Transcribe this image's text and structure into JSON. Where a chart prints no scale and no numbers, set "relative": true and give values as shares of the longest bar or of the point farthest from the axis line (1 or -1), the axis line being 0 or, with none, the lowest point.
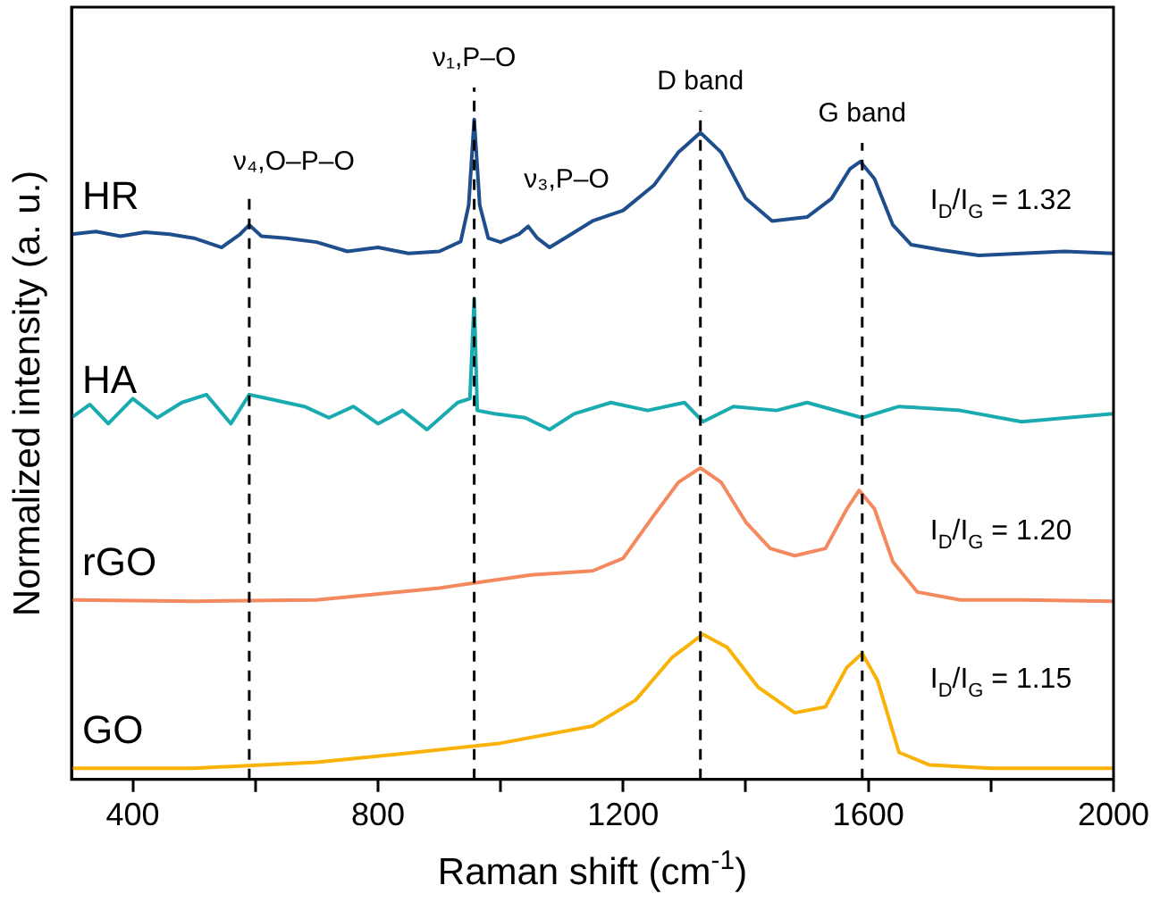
{
  "chart_data": {
    "type": "line",
    "xlabel": "Raman shift (cm$^{-1}$)",
    "ylabel": "Normalized intensity (a. u.)",
    "relative": true,
    "xlim": [
      300,
      2000
    ],
    "xticks": [
      400,
      {
        "value": 600,
        "label": null
      },
      800,
      {
        "value": 1000,
        "label": null
      },
      1200,
      {
        "value": 1400,
        "label": null
      },
      1600,
      {
        "value": 1800,
        "label": null
      },
      2000
    ],
    "grid": false,
    "legend": false,
    "marker": "none",
    "line_style": "solid",
    "series": [
      {
        "name": "HR",
        "color": "#1f4e8c",
        "x": [
          300,
          340,
          380,
          420,
          460,
          500,
          545,
          575,
          590,
          610,
          650,
          700,
          750,
          800,
          850,
          900,
          935,
          948,
          957,
          966,
          980,
          1000,
          1030,
          1045,
          1060,
          1080,
          1110,
          1150,
          1200,
          1250,
          1290,
          1326,
          1360,
          1400,
          1443,
          1500,
          1540,
          1570,
          1587,
          1610,
          1640,
          1670,
          1720,
          1780,
          1850,
          1920,
          2000
        ],
        "values": [
          0.826,
          0.83,
          0.823,
          0.829,
          0.826,
          0.82,
          0.806,
          0.826,
          0.84,
          0.823,
          0.82,
          0.814,
          0.8,
          0.806,
          0.797,
          0.8,
          0.815,
          0.87,
          1.0,
          0.87,
          0.82,
          0.814,
          0.826,
          0.838,
          0.82,
          0.806,
          0.823,
          0.846,
          0.862,
          0.9,
          0.95,
          0.98,
          0.95,
          0.88,
          0.846,
          0.852,
          0.88,
          0.925,
          0.936,
          0.91,
          0.84,
          0.81,
          0.802,
          0.794,
          0.797,
          0.8,
          0.797
        ]
      },
      {
        "name": "HA",
        "color": "#1aabb0",
        "x": [
          300,
          330,
          360,
          400,
          440,
          480,
          520,
          560,
          590,
          620,
          680,
          720,
          760,
          800,
          840,
          880,
          930,
          950,
          957,
          962,
          990,
          1040,
          1080,
          1120,
          1180,
          1240,
          1300,
          1330,
          1380,
          1450,
          1500,
          1590,
          1650,
          1750,
          1850,
          2000
        ],
        "values": [
          0.548,
          0.568,
          0.539,
          0.577,
          0.548,
          0.571,
          0.583,
          0.539,
          0.583,
          0.577,
          0.565,
          0.548,
          0.565,
          0.539,
          0.559,
          0.53,
          0.571,
          0.577,
          0.728,
          0.559,
          0.554,
          0.548,
          0.53,
          0.554,
          0.571,
          0.559,
          0.571,
          0.542,
          0.565,
          0.559,
          0.571,
          0.548,
          0.565,
          0.559,
          0.542,
          0.554
        ]
      },
      {
        "name": "rGO",
        "color": "#f4895f",
        "x": [
          300,
          500,
          700,
          900,
          1050,
          1150,
          1200,
          1250,
          1290,
          1326,
          1360,
          1400,
          1440,
          1480,
          1530,
          1565,
          1585,
          1610,
          1640,
          1680,
          1750,
          1850,
          2000
        ],
        "values": [
          0.272,
          0.27,
          0.272,
          0.29,
          0.31,
          0.316,
          0.335,
          0.4,
          0.45,
          0.472,
          0.45,
          0.39,
          0.35,
          0.339,
          0.35,
          0.41,
          0.438,
          0.41,
          0.33,
          0.284,
          0.272,
          0.272,
          0.27
        ]
      },
      {
        "name": "GO",
        "color": "#f9b208",
        "x": [
          300,
          500,
          700,
          850,
          1000,
          1150,
          1220,
          1280,
          1330,
          1370,
          1420,
          1480,
          1530,
          1565,
          1590,
          1615,
          1650,
          1700,
          1800,
          2000
        ],
        "values": [
          0.017,
          0.017,
          0.026,
          0.04,
          0.055,
          0.081,
          0.12,
          0.185,
          0.22,
          0.2,
          0.14,
          0.101,
          0.11,
          0.17,
          0.191,
          0.15,
          0.041,
          0.022,
          0.017,
          0.017
        ]
      }
    ],
    "ref_lines": [
      {
        "axis": "x",
        "value": 590,
        "label": "ν₄,O–P–O",
        "color": "#000000",
        "line_style": "dashed"
      },
      {
        "axis": "x",
        "value": 957,
        "label": "ν₁,P–O",
        "color": "#000000",
        "line_style": "dashed"
      },
      {
        "axis": "x",
        "value": 1326,
        "label": "D band",
        "color": "#000000",
        "line_style": "dashed"
      },
      {
        "axis": "x",
        "value": 1590,
        "label": "G band",
        "color": "#000000",
        "line_style": "dashed"
      }
    ],
    "annotations": [
      "ν₃,P–O",
      "I$_{D}$/I$_{G}$ = 1.32",
      "I$_{D}$/I$_{G}$ = 1.20",
      "I$_{D}$/I$_{G}$ = 1.15"
    ]
  }
}
